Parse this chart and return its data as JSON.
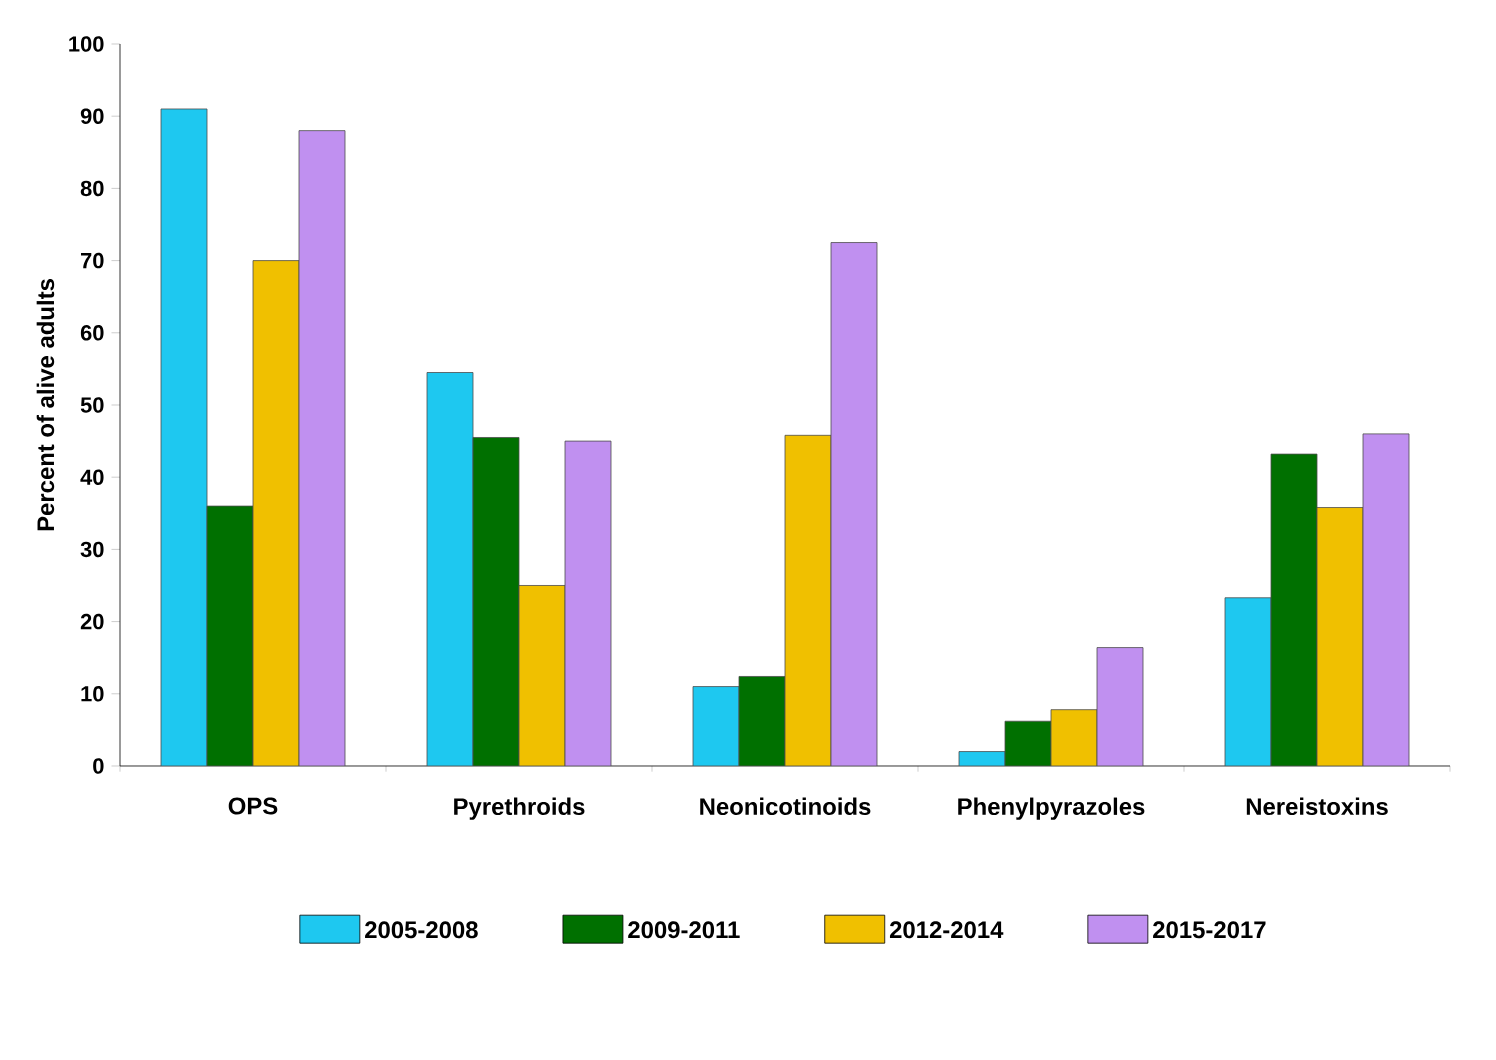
{
  "chart_data": {
    "type": "bar",
    "ylabel": "Percent of alive adults",
    "categories": [
      "OPS",
      "Pyrethroids",
      "Neonicotinoids",
      "Phenylpyrazoles",
      "Nereistoxins"
    ],
    "series": [
      {
        "name": "2005-2008",
        "color": "#1ec8f0",
        "values": [
          91,
          54.5,
          11,
          2,
          23.3
        ]
      },
      {
        "name": "2009-2011",
        "color": "#007000",
        "values": [
          36,
          45.5,
          12.4,
          6.2,
          43.2
        ]
      },
      {
        "name": "2012-2014",
        "color": "#f0c000",
        "values": [
          70,
          25,
          45.8,
          7.8,
          35.8
        ]
      },
      {
        "name": "2015-2017",
        "color": "#c090f0",
        "values": [
          88,
          45,
          72.5,
          16.4,
          46
        ]
      }
    ],
    "ylim": [
      0,
      100
    ],
    "yticks": [
      0,
      10,
      20,
      30,
      40,
      50,
      60,
      70,
      80,
      90,
      100
    ],
    "grid": false,
    "legend": "bottom"
  }
}
